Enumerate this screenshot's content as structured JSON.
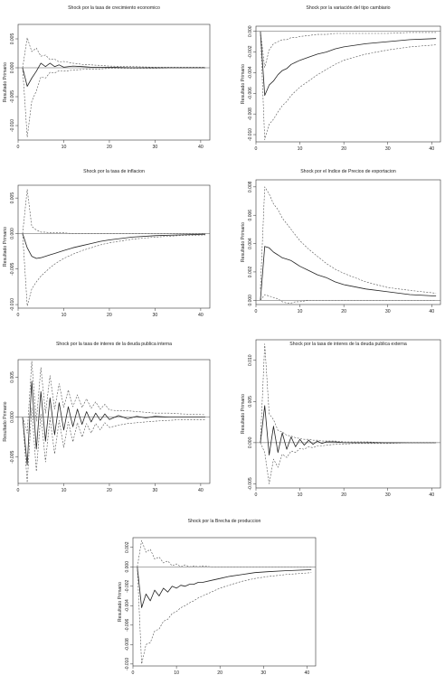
{
  "figure": {
    "background": "#ffffff",
    "line_color": "#222222",
    "band_color": "#555555"
  },
  "chart_data": [
    {
      "type": "line",
      "title": "Shock por la tasa de crecimiento economico",
      "xlabel": "",
      "ylabel": "Resultado Primario",
      "xlim": [
        0,
        42
      ],
      "ylim": [
        -0.0125,
        0.0075
      ],
      "xticks": [
        0,
        10,
        20,
        30,
        40
      ],
      "yticks": [
        -0.01,
        -0.005,
        0.0,
        0.005
      ],
      "ytick_labels": [
        "-0.010",
        "-0.005",
        "0.000",
        "0.005"
      ],
      "zero_line": true,
      "x": [
        1,
        2,
        3,
        4,
        5,
        6,
        7,
        8,
        9,
        10,
        12,
        14,
        16,
        18,
        20,
        25,
        30,
        35,
        41
      ],
      "series": [
        {
          "role": "upper",
          "style": "dashed",
          "values": [
            0.0,
            0.0052,
            0.0028,
            0.0034,
            0.002,
            0.0022,
            0.0014,
            0.0015,
            0.001,
            0.0011,
            0.0008,
            0.0006,
            0.0005,
            0.0004,
            0.0003,
            0.0002,
            0.0001,
            0.0001,
            0.0001
          ]
        },
        {
          "role": "response",
          "style": "solid",
          "values": [
            0.0,
            -0.0032,
            -0.0018,
            -0.0006,
            0.0008,
            0.0002,
            0.0008,
            0.0002,
            0.0005,
            0.0001,
            0.0003,
            0.0002,
            0.0001,
            0.0001,
            0.0001,
            0.0,
            0.0,
            0.0,
            0.0
          ]
        },
        {
          "role": "lower",
          "style": "dashed",
          "values": [
            0.0,
            -0.012,
            -0.0058,
            -0.004,
            -0.0016,
            -0.0018,
            -0.0008,
            -0.0009,
            -0.0005,
            -0.0006,
            -0.0004,
            -0.0003,
            -0.0002,
            -0.0002,
            -0.0001,
            -0.0001,
            -0.0001,
            0.0,
            0.0
          ]
        }
      ]
    },
    {
      "type": "line",
      "title": "Shock por la variación del tipo cambiario",
      "xlabel": "",
      "ylabel": "Resultado Primario",
      "xlim": [
        0,
        42
      ],
      "ylim": [
        -0.0107,
        0.0005
      ],
      "xticks": [
        0,
        10,
        20,
        30,
        40
      ],
      "yticks": [
        -0.01,
        -0.008,
        -0.006,
        -0.004,
        -0.002,
        0.0
      ],
      "ytick_labels": [
        "-0.010",
        "-0.008",
        "-0.006",
        "-0.004",
        "-0.002",
        "0.000"
      ],
      "zero_line": true,
      "x": [
        1,
        2,
        3,
        4,
        5,
        6,
        7,
        8,
        9,
        10,
        12,
        14,
        16,
        18,
        20,
        25,
        30,
        35,
        41
      ],
      "series": [
        {
          "role": "upper",
          "style": "dashed",
          "values": [
            0.0,
            -0.0035,
            -0.0018,
            -0.0012,
            -0.001,
            -0.0008,
            -0.0008,
            -0.0006,
            -0.0006,
            -0.0005,
            -0.0004,
            -0.0003,
            -0.0003,
            -0.0002,
            -0.0002,
            -0.0002,
            -0.0002,
            -0.0001,
            -0.0001
          ]
        },
        {
          "role": "response",
          "style": "solid",
          "values": [
            0.0,
            -0.0062,
            -0.0052,
            -0.0048,
            -0.0042,
            -0.0038,
            -0.0036,
            -0.0032,
            -0.003,
            -0.0028,
            -0.0025,
            -0.0022,
            -0.002,
            -0.0017,
            -0.0015,
            -0.0012,
            -0.001,
            -0.0008,
            -0.0007
          ]
        },
        {
          "role": "lower",
          "style": "dashed",
          "values": [
            0.0,
            -0.0105,
            -0.009,
            -0.0085,
            -0.0078,
            -0.0072,
            -0.0068,
            -0.0062,
            -0.0058,
            -0.0054,
            -0.0048,
            -0.0042,
            -0.0037,
            -0.0032,
            -0.0028,
            -0.0022,
            -0.0018,
            -0.0015,
            -0.0013
          ]
        }
      ]
    },
    {
      "type": "line",
      "title": "Shock por la tasa de inflacion",
      "xlabel": "",
      "ylabel": "Resultado Primario",
      "xlim": [
        0,
        42
      ],
      "ylim": [
        -0.0105,
        0.0068
      ],
      "xticks": [
        0,
        10,
        20,
        30,
        40
      ],
      "yticks": [
        -0.01,
        -0.005,
        0.0,
        0.005
      ],
      "ytick_labels": [
        "-0.010",
        "-0.005",
        "0.000",
        "0.005"
      ],
      "zero_line": true,
      "x": [
        1,
        2,
        3,
        4,
        5,
        6,
        7,
        8,
        9,
        10,
        12,
        14,
        16,
        18,
        20,
        25,
        30,
        35,
        41
      ],
      "series": [
        {
          "role": "upper",
          "style": "dashed",
          "values": [
            0.0,
            0.0062,
            0.001,
            0.0005,
            0.0002,
            0.0002,
            0.0001,
            0.0001,
            0.0001,
            0.0001,
            0.0,
            0.0,
            0.0,
            0.0,
            0.0,
            0.0,
            0.0,
            0.0,
            0.0
          ]
        },
        {
          "role": "response",
          "style": "solid",
          "values": [
            0.0,
            -0.002,
            -0.0032,
            -0.0035,
            -0.0034,
            -0.0032,
            -0.003,
            -0.0028,
            -0.0026,
            -0.0024,
            -0.002,
            -0.0017,
            -0.0014,
            -0.0011,
            -0.0009,
            -0.0005,
            -0.0003,
            -0.0002,
            -0.0001
          ]
        },
        {
          "role": "lower",
          "style": "dashed",
          "values": [
            0.0,
            -0.0102,
            -0.0078,
            -0.0068,
            -0.006,
            -0.0054,
            -0.0048,
            -0.0043,
            -0.0039,
            -0.0035,
            -0.0029,
            -0.0024,
            -0.002,
            -0.0016,
            -0.0013,
            -0.0008,
            -0.0005,
            -0.0003,
            -0.0002
          ]
        }
      ]
    },
    {
      "type": "line",
      "title": "Shock por el Indice de Precios de exportacion",
      "xlabel": "",
      "ylabel": "Resultado Primario",
      "xlim": [
        0,
        42
      ],
      "ylim": [
        -0.0003,
        0.0085
      ],
      "xticks": [
        0,
        10,
        20,
        30,
        40
      ],
      "yticks": [
        0.0,
        0.002,
        0.004,
        0.006,
        0.008
      ],
      "ytick_labels": [
        "0.000",
        "0.002",
        "0.004",
        "0.006",
        "0.008"
      ],
      "zero_line": true,
      "x": [
        1,
        2,
        3,
        4,
        5,
        6,
        7,
        8,
        9,
        10,
        12,
        14,
        16,
        18,
        20,
        25,
        30,
        35,
        41
      ],
      "series": [
        {
          "role": "upper",
          "style": "dashed",
          "values": [
            0.0008,
            0.008,
            0.0075,
            0.0068,
            0.0064,
            0.0058,
            0.0054,
            0.005,
            0.0046,
            0.0042,
            0.0036,
            0.0031,
            0.0026,
            0.0022,
            0.0019,
            0.0013,
            0.0009,
            0.0007,
            0.0005
          ]
        },
        {
          "role": "response",
          "style": "solid",
          "values": [
            0.0,
            0.0038,
            0.0037,
            0.0034,
            0.0032,
            0.003,
            0.0029,
            0.0028,
            0.0026,
            0.0024,
            0.0021,
            0.0018,
            0.0016,
            0.0013,
            0.0011,
            0.0008,
            0.0006,
            0.0004,
            0.0003
          ]
        },
        {
          "role": "lower",
          "style": "dashed",
          "values": [
            0.0,
            0.0004,
            0.0003,
            0.0002,
            0.0001,
            -0.0001,
            -0.0002,
            -0.0002,
            -0.0001,
            -0.0001,
            0.0,
            0.0,
            0.0,
            0.0,
            0.0,
            0.0,
            0.0,
            0.0,
            0.0
          ]
        }
      ]
    },
    {
      "type": "line",
      "title": "Shock por la tasa de interes de la deuda publica interna",
      "xlabel": "",
      "ylabel": "Resultado Primario",
      "xlim": [
        0,
        42
      ],
      "ylim": [
        -0.0083,
        0.0072
      ],
      "xticks": [
        0,
        10,
        20,
        30,
        40
      ],
      "yticks": [
        -0.005,
        0.0,
        0.005
      ],
      "ytick_labels": [
        "-0.005",
        "0.000",
        "0.005"
      ],
      "zero_line": true,
      "x": [
        1,
        2,
        3,
        4,
        5,
        6,
        7,
        8,
        9,
        10,
        11,
        12,
        13,
        14,
        15,
        16,
        17,
        18,
        19,
        20,
        22,
        24,
        26,
        28,
        30,
        33,
        36,
        41
      ],
      "series": [
        {
          "role": "upper",
          "style": "dashed",
          "values": [
            0.0,
            -0.002,
            0.007,
            -0.0005,
            0.0062,
            0.0005,
            0.0052,
            0.001,
            0.0042,
            0.0012,
            0.0034,
            0.0013,
            0.0028,
            0.0012,
            0.0023,
            0.0011,
            0.0019,
            0.001,
            0.0016,
            0.0009,
            0.0008,
            0.0008,
            0.0007,
            0.0006,
            0.0005,
            0.0005,
            0.0004,
            0.0003
          ]
        },
        {
          "role": "response",
          "style": "solid",
          "values": [
            0.0,
            -0.006,
            0.0045,
            -0.004,
            0.0032,
            -0.003,
            0.0024,
            -0.0022,
            0.0018,
            -0.0016,
            0.0013,
            -0.0012,
            0.001,
            -0.0009,
            0.0007,
            -0.0006,
            0.0005,
            -0.0004,
            0.0004,
            -0.0003,
            0.0002,
            -0.0002,
            0.0001,
            -0.0001,
            0.0001,
            0.0,
            0.0,
            0.0
          ]
        },
        {
          "role": "lower",
          "style": "dashed",
          "values": [
            0.0,
            -0.0082,
            0.0012,
            -0.0068,
            0.0004,
            -0.0056,
            -0.0001,
            -0.0046,
            -0.0004,
            -0.0038,
            -0.0006,
            -0.0031,
            -0.0007,
            -0.0025,
            -0.0008,
            -0.002,
            -0.0008,
            -0.0016,
            -0.0007,
            -0.0013,
            -0.001,
            -0.0008,
            -0.0007,
            -0.0006,
            -0.0005,
            -0.0004,
            -0.0003,
            -0.0003
          ]
        }
      ]
    },
    {
      "type": "line",
      "title": "Shock por la tasa de interes de la deuda publica externa",
      "xlabel": "",
      "ylabel": "Resultado Primario",
      "xlim": [
        0,
        42
      ],
      "ylim": [
        -0.0055,
        0.0125
      ],
      "xticks": [
        0,
        10,
        20,
        30,
        40
      ],
      "yticks": [
        -0.005,
        0.0,
        0.005,
        0.01
      ],
      "ytick_labels": [
        "-0.005",
        "0.000",
        "0.005",
        "0.010"
      ],
      "zero_line": true,
      "x": [
        1,
        2,
        3,
        4,
        5,
        6,
        7,
        8,
        9,
        10,
        11,
        12,
        13,
        14,
        15,
        16,
        18,
        20,
        22,
        25,
        30,
        35,
        41
      ],
      "series": [
        {
          "role": "upper",
          "style": "dashed",
          "values": [
            0.0,
            0.012,
            0.0035,
            0.0028,
            0.0015,
            0.0013,
            0.0009,
            0.0008,
            0.0006,
            0.0005,
            0.0004,
            0.0004,
            0.0003,
            0.0003,
            0.0002,
            0.0002,
            0.0002,
            0.0001,
            0.0001,
            0.0001,
            0.0,
            0.0,
            0.0
          ]
        },
        {
          "role": "response",
          "style": "solid",
          "values": [
            0.0,
            0.0045,
            -0.0015,
            0.002,
            -0.0012,
            0.0012,
            -0.0008,
            0.0007,
            -0.0005,
            0.0004,
            -0.0003,
            0.0003,
            -0.0002,
            0.0002,
            -0.0001,
            0.0001,
            0.0001,
            0.0,
            0.0,
            0.0,
            0.0,
            0.0,
            0.0
          ]
        },
        {
          "role": "lower",
          "style": "dashed",
          "values": [
            0.0,
            -0.0012,
            -0.005,
            -0.002,
            -0.003,
            -0.0014,
            -0.0018,
            -0.001,
            -0.0012,
            -0.0007,
            -0.0008,
            -0.0005,
            -0.0006,
            -0.0004,
            -0.0004,
            -0.0003,
            -0.0002,
            -0.0002,
            -0.0001,
            -0.0001,
            -0.0001,
            0.0,
            0.0
          ]
        }
      ]
    },
    {
      "type": "line",
      "title": "Shock por la Brecha de produccion",
      "xlabel": "",
      "ylabel": "Resultado Primario",
      "xlim": [
        0,
        42
      ],
      "ylim": [
        -0.0102,
        0.003
      ],
      "xticks": [
        0,
        10,
        20,
        30,
        40
      ],
      "yticks": [
        -0.01,
        -0.008,
        -0.006,
        -0.004,
        -0.002,
        0.0,
        0.002
      ],
      "ytick_labels": [
        "-0.010",
        "-0.008",
        "-0.006",
        "-0.004",
        "-0.002",
        "0.000",
        "0.002"
      ],
      "zero_line": true,
      "x": [
        1,
        2,
        3,
        4,
        5,
        6,
        7,
        8,
        9,
        10,
        11,
        12,
        13,
        14,
        15,
        16,
        18,
        20,
        22,
        25,
        28,
        31,
        35,
        41
      ],
      "series": [
        {
          "role": "upper",
          "style": "dashed",
          "values": [
            0.0,
            0.0027,
            0.0015,
            0.0018,
            0.0008,
            0.001,
            0.0004,
            0.0006,
            0.0001,
            0.0003,
            0.0,
            0.0002,
            0.0,
            0.0001,
            0.0,
            0.0001,
            0.0,
            0.0,
            0.0,
            0.0,
            0.0,
            0.0,
            0.0,
            0.0
          ]
        },
        {
          "role": "response",
          "style": "solid",
          "values": [
            0.0,
            -0.0042,
            -0.0028,
            -0.0035,
            -0.0024,
            -0.003,
            -0.0022,
            -0.0026,
            -0.002,
            -0.0022,
            -0.0019,
            -0.002,
            -0.0018,
            -0.0018,
            -0.0016,
            -0.0016,
            -0.0014,
            -0.0012,
            -0.001,
            -0.0008,
            -0.0006,
            -0.0005,
            -0.0004,
            -0.0003
          ]
        },
        {
          "role": "lower",
          "style": "dashed",
          "values": [
            0.0,
            -0.01,
            -0.008,
            -0.0078,
            -0.0066,
            -0.0064,
            -0.0056,
            -0.0054,
            -0.0048,
            -0.0046,
            -0.0042,
            -0.004,
            -0.0037,
            -0.0035,
            -0.0032,
            -0.003,
            -0.0026,
            -0.0022,
            -0.0019,
            -0.0015,
            -0.0012,
            -0.001,
            -0.0008,
            -0.0006
          ]
        }
      ]
    }
  ]
}
